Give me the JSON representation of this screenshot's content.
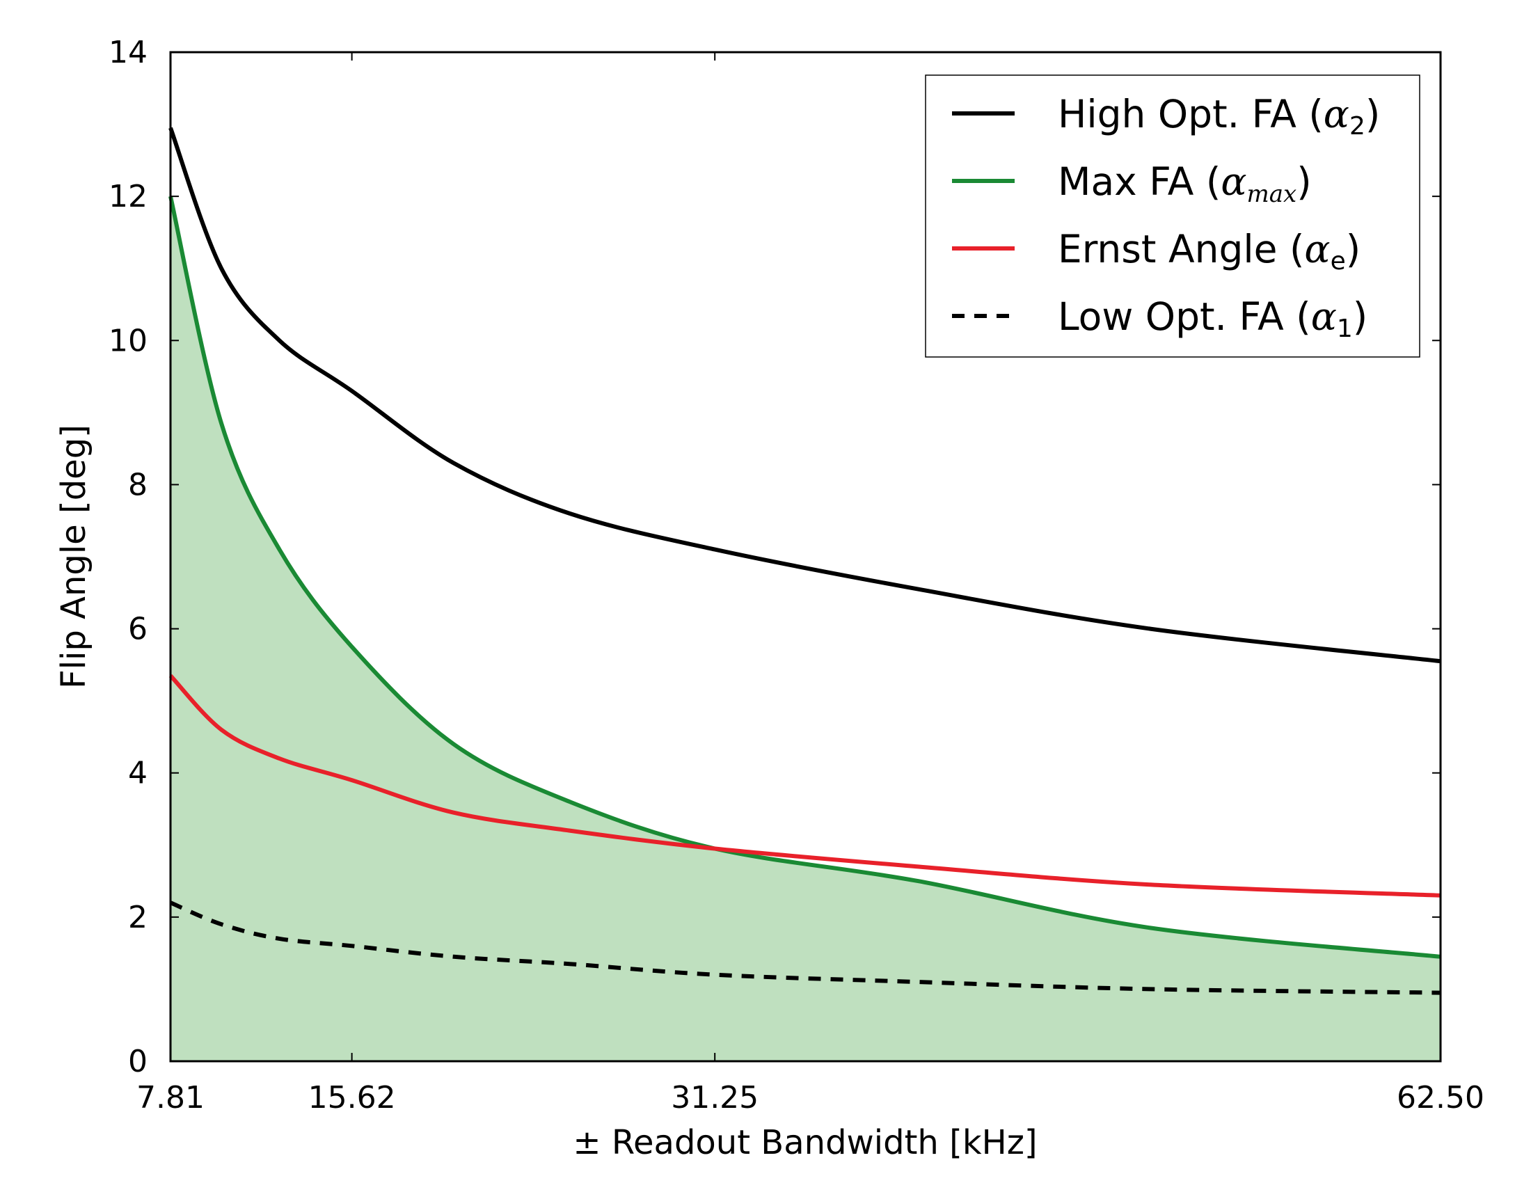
{
  "chart_data": {
    "type": "line",
    "title": "",
    "xlabel": "± Readout Bandwidth [kHz]",
    "ylabel": "Flip Angle [deg]",
    "xlim": [
      7.81,
      62.5
    ],
    "ylim": [
      0,
      14
    ],
    "x_ticks": [
      {
        "value": 7.81,
        "label": "7.81"
      },
      {
        "value": 15.62,
        "label": "15.62"
      },
      {
        "value": 31.25,
        "label": "31.25"
      },
      {
        "value": 62.5,
        "label": "62.50"
      }
    ],
    "y_ticks": [
      {
        "value": 0,
        "label": "0"
      },
      {
        "value": 2,
        "label": "2"
      },
      {
        "value": 4,
        "label": "4"
      },
      {
        "value": 6,
        "label": "6"
      },
      {
        "value": 8,
        "label": "8"
      },
      {
        "value": 10,
        "label": "10"
      },
      {
        "value": 12,
        "label": "12"
      },
      {
        "value": 14,
        "label": "14"
      }
    ],
    "grid": false,
    "legend_position": "top-right",
    "x": [
      7.81,
      10,
      12.5,
      15.62,
      20,
      25,
      31.25,
      40,
      50,
      62.5
    ],
    "series": [
      {
        "key": "high",
        "name": "High Opt. FA (α2)",
        "label_text": "High Opt. FA (",
        "symbol": "α",
        "subscript": "2",
        "color": "#000000",
        "dash": "solid",
        "values": [
          12.95,
          11.0,
          10.0,
          9.3,
          8.3,
          7.6,
          7.1,
          6.55,
          6.0,
          5.55
        ]
      },
      {
        "key": "max",
        "name": "Max FA (αmax)",
        "label_text": "Max FA (",
        "symbol": "α",
        "subscript": "max",
        "color": "#1a8a34",
        "dash": "solid",
        "fill": "#bfe0bf",
        "values": [
          12.0,
          8.85,
          7.1,
          5.75,
          4.4,
          3.6,
          2.95,
          2.5,
          1.85,
          1.45
        ]
      },
      {
        "key": "ernst",
        "name": "Ernst Angle (αe)",
        "label_text": "Ernst Angle (",
        "symbol": "α",
        "subscript": "e",
        "color": "#e8212a",
        "dash": "solid",
        "values": [
          5.35,
          4.6,
          4.2,
          3.9,
          3.45,
          3.2,
          2.95,
          2.7,
          2.45,
          2.3
        ]
      },
      {
        "key": "low",
        "name": "Low Opt. FA (α1)",
        "label_text": "Low Opt. FA (",
        "symbol": "α",
        "subscript": "1",
        "color": "#000000",
        "dash": "dashed",
        "values": [
          2.2,
          1.9,
          1.7,
          1.6,
          1.45,
          1.35,
          1.2,
          1.1,
          1.0,
          0.95
        ]
      }
    ]
  }
}
